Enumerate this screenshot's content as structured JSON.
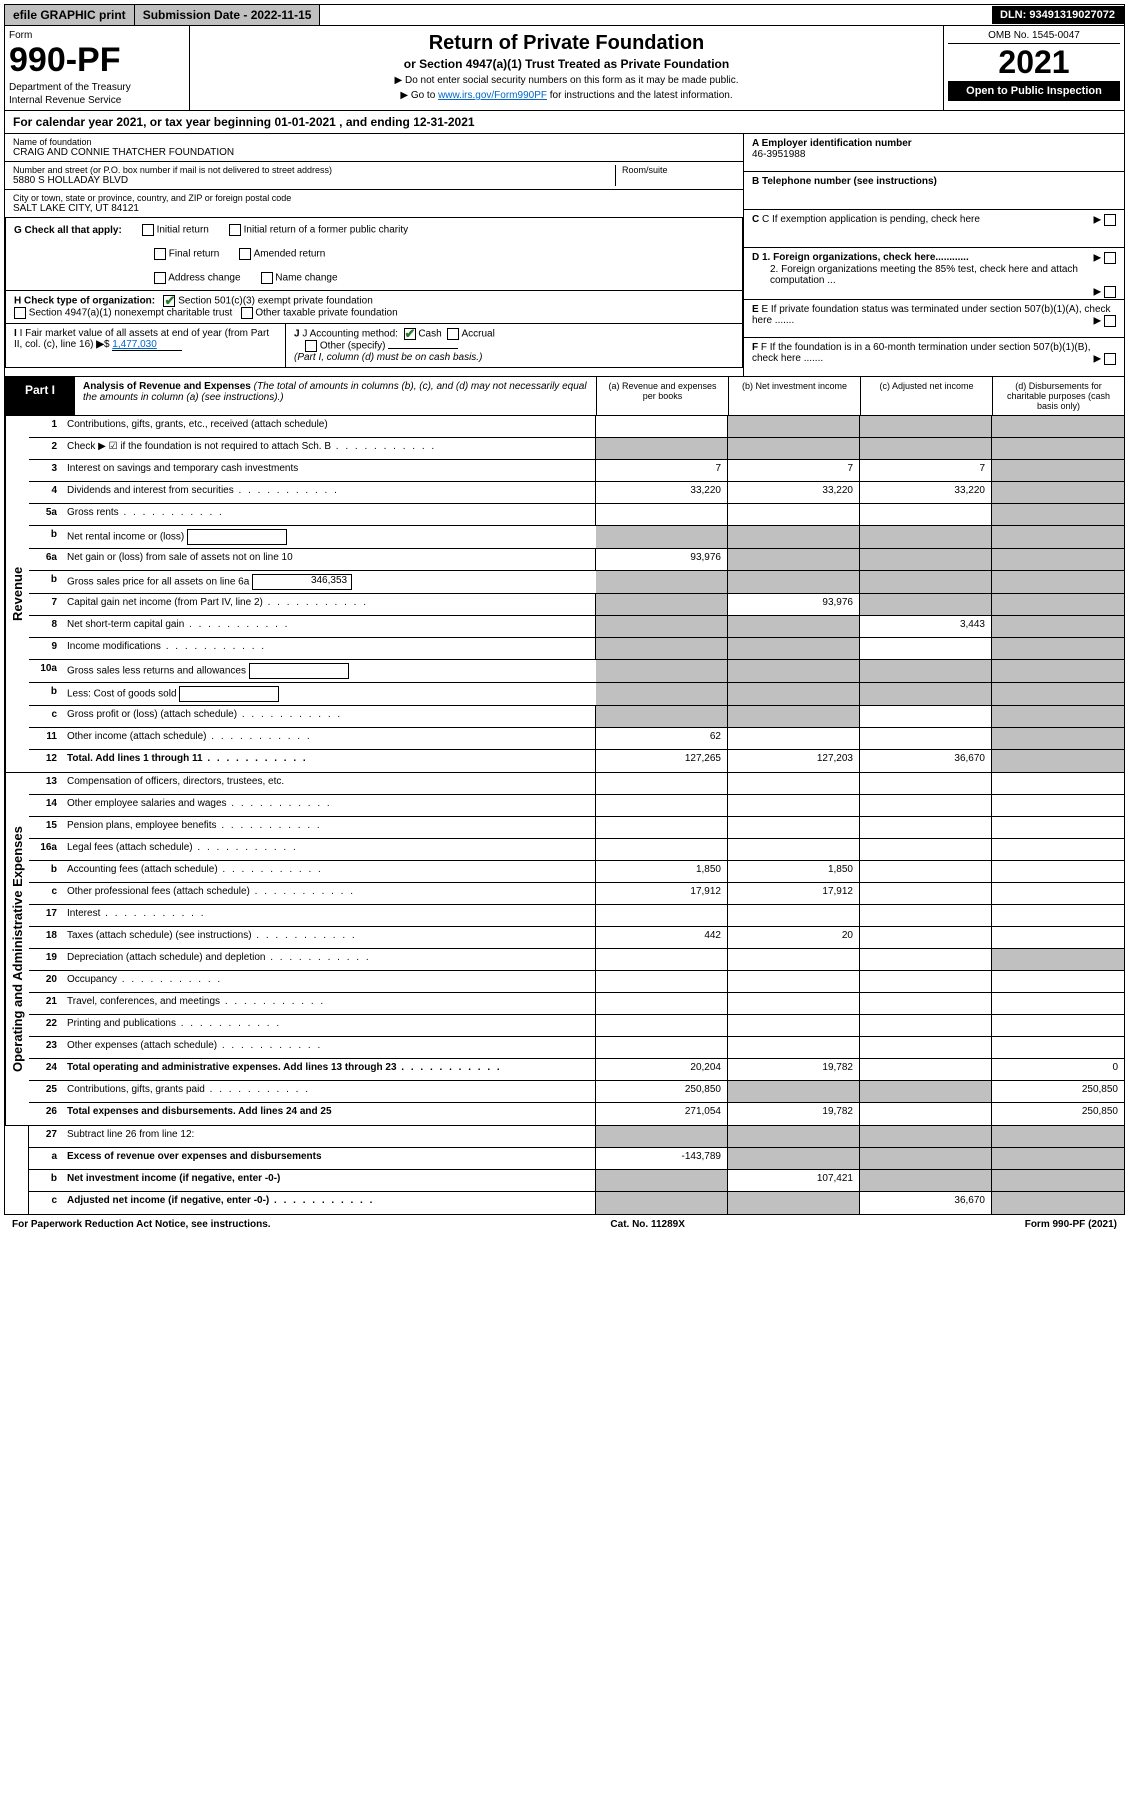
{
  "topbar": {
    "efile": "efile GRAPHIC print",
    "submission": "Submission Date - 2022-11-15",
    "dln": "DLN: 93491319027072"
  },
  "header": {
    "form_label": "Form",
    "form_num": "990-PF",
    "dept": "Department of the Treasury",
    "irs": "Internal Revenue Service",
    "title": "Return of Private Foundation",
    "subtitle": "or Section 4947(a)(1) Trust Treated as Private Foundation",
    "note1": "▶ Do not enter social security numbers on this form as it may be made public.",
    "note2_pre": "▶ Go to ",
    "note2_link": "www.irs.gov/Form990PF",
    "note2_post": " for instructions and the latest information.",
    "omb": "OMB No. 1545-0047",
    "year": "2021",
    "open": "Open to Public Inspection"
  },
  "cal_year": {
    "text_pre": "For calendar year 2021, or tax year beginning ",
    "begin": "01-01-2021",
    "text_mid": " , and ending ",
    "end": "12-31-2021"
  },
  "entity": {
    "name_label": "Name of foundation",
    "name": "CRAIG AND CONNIE THATCHER FOUNDATION",
    "addr_label": "Number and street (or P.O. box number if mail is not delivered to street address)",
    "addr": "5880 S HOLLADAY BLVD",
    "room_label": "Room/suite",
    "city_label": "City or town, state or province, country, and ZIP or foreign postal code",
    "city": "SALT LAKE CITY, UT  84121",
    "ein_label": "A Employer identification number",
    "ein": "46-3951988",
    "tel_label": "B Telephone number (see instructions)",
    "c_label": "C If exemption application is pending, check here",
    "d1": "D 1. Foreign organizations, check here............",
    "d2": "2. Foreign organizations meeting the 85% test, check here and attach computation ...",
    "e_label": "E If private foundation status was terminated under section 507(b)(1)(A), check here .......",
    "f_label": "F If the foundation is in a 60-month termination under section 507(b)(1)(B), check here ......."
  },
  "g": {
    "label": "G Check all that apply:",
    "opts": [
      "Initial return",
      "Final return",
      "Address change",
      "Initial return of a former public charity",
      "Amended return",
      "Name change"
    ]
  },
  "h": {
    "label": "H Check type of organization:",
    "opt1": "Section 501(c)(3) exempt private foundation",
    "opt2": "Section 4947(a)(1) nonexempt charitable trust",
    "opt3": "Other taxable private foundation"
  },
  "i": {
    "label": "I Fair market value of all assets at end of year (from Part II, col. (c), line 16)",
    "val": "1,477,030"
  },
  "j": {
    "label": "J Accounting method:",
    "cash": "Cash",
    "accrual": "Accrual",
    "other": "Other (specify)",
    "note": "(Part I, column (d) must be on cash basis.)"
  },
  "part1": {
    "label": "Part I",
    "title": "Analysis of Revenue and Expenses",
    "desc": "(The total of amounts in columns (b), (c), and (d) may not necessarily equal the amounts in column (a) (see instructions).)",
    "col_a": "(a) Revenue and expenses per books",
    "col_b": "(b) Net investment income",
    "col_c": "(c) Adjusted net income",
    "col_d": "(d) Disbursements for charitable purposes (cash basis only)"
  },
  "revenue_label": "Revenue",
  "expenses_label": "Operating and Administrative Expenses",
  "rows": [
    {
      "n": "1",
      "d": "Contributions, gifts, grants, etc., received (attach schedule)",
      "a": "",
      "b": "grey",
      "c": "grey",
      "dd": "grey"
    },
    {
      "n": "2",
      "d": "Check ▶ ☑ if the foundation is not required to attach Sch. B",
      "a": "grey",
      "b": "grey",
      "c": "grey",
      "dd": "grey",
      "dots": true
    },
    {
      "n": "3",
      "d": "Interest on savings and temporary cash investments",
      "a": "7",
      "b": "7",
      "c": "7",
      "dd": "grey"
    },
    {
      "n": "4",
      "d": "Dividends and interest from securities",
      "a": "33,220",
      "b": "33,220",
      "c": "33,220",
      "dd": "grey",
      "dots": true
    },
    {
      "n": "5a",
      "d": "Gross rents",
      "a": "",
      "b": "",
      "c": "",
      "dd": "grey",
      "dots": true
    },
    {
      "n": "b",
      "d": "Net rental income or (loss)",
      "a": "grey",
      "b": "grey",
      "c": "grey",
      "dd": "grey",
      "inline": true
    },
    {
      "n": "6a",
      "d": "Net gain or (loss) from sale of assets not on line 10",
      "a": "93,976",
      "b": "grey",
      "c": "grey",
      "dd": "grey"
    },
    {
      "n": "b",
      "d": "Gross sales price for all assets on line 6a",
      "a": "grey",
      "b": "grey",
      "c": "grey",
      "dd": "grey",
      "inline": true,
      "ival": "346,353"
    },
    {
      "n": "7",
      "d": "Capital gain net income (from Part IV, line 2)",
      "a": "grey",
      "b": "93,976",
      "c": "grey",
      "dd": "grey",
      "dots": true
    },
    {
      "n": "8",
      "d": "Net short-term capital gain",
      "a": "grey",
      "b": "grey",
      "c": "3,443",
      "dd": "grey",
      "dots": true
    },
    {
      "n": "9",
      "d": "Income modifications",
      "a": "grey",
      "b": "grey",
      "c": "",
      "dd": "grey",
      "dots": true
    },
    {
      "n": "10a",
      "d": "Gross sales less returns and allowances",
      "a": "grey",
      "b": "grey",
      "c": "grey",
      "dd": "grey",
      "inline": true
    },
    {
      "n": "b",
      "d": "Less: Cost of goods sold",
      "a": "grey",
      "b": "grey",
      "c": "grey",
      "dd": "grey",
      "inline": true,
      "dots": true
    },
    {
      "n": "c",
      "d": "Gross profit or (loss) (attach schedule)",
      "a": "grey",
      "b": "grey",
      "c": "",
      "dd": "grey",
      "dots": true
    },
    {
      "n": "11",
      "d": "Other income (attach schedule)",
      "a": "62",
      "b": "",
      "c": "",
      "dd": "grey",
      "dots": true
    },
    {
      "n": "12",
      "d": "Total. Add lines 1 through 11",
      "a": "127,265",
      "b": "127,203",
      "c": "36,670",
      "dd": "grey",
      "bold": true,
      "dots": true
    }
  ],
  "exp_rows": [
    {
      "n": "13",
      "d": "Compensation of officers, directors, trustees, etc.",
      "a": "",
      "b": "",
      "c": "",
      "dd": ""
    },
    {
      "n": "14",
      "d": "Other employee salaries and wages",
      "a": "",
      "b": "",
      "c": "",
      "dd": "",
      "dots": true
    },
    {
      "n": "15",
      "d": "Pension plans, employee benefits",
      "a": "",
      "b": "",
      "c": "",
      "dd": "",
      "dots": true
    },
    {
      "n": "16a",
      "d": "Legal fees (attach schedule)",
      "a": "",
      "b": "",
      "c": "",
      "dd": "",
      "dots": true
    },
    {
      "n": "b",
      "d": "Accounting fees (attach schedule)",
      "a": "1,850",
      "b": "1,850",
      "c": "",
      "dd": "",
      "dots": true
    },
    {
      "n": "c",
      "d": "Other professional fees (attach schedule)",
      "a": "17,912",
      "b": "17,912",
      "c": "",
      "dd": "",
      "dots": true
    },
    {
      "n": "17",
      "d": "Interest",
      "a": "",
      "b": "",
      "c": "",
      "dd": "",
      "dots": true
    },
    {
      "n": "18",
      "d": "Taxes (attach schedule) (see instructions)",
      "a": "442",
      "b": "20",
      "c": "",
      "dd": "",
      "dots": true
    },
    {
      "n": "19",
      "d": "Depreciation (attach schedule) and depletion",
      "a": "",
      "b": "",
      "c": "",
      "dd": "grey",
      "dots": true
    },
    {
      "n": "20",
      "d": "Occupancy",
      "a": "",
      "b": "",
      "c": "",
      "dd": "",
      "dots": true
    },
    {
      "n": "21",
      "d": "Travel, conferences, and meetings",
      "a": "",
      "b": "",
      "c": "",
      "dd": "",
      "dots": true
    },
    {
      "n": "22",
      "d": "Printing and publications",
      "a": "",
      "b": "",
      "c": "",
      "dd": "",
      "dots": true
    },
    {
      "n": "23",
      "d": "Other expenses (attach schedule)",
      "a": "",
      "b": "",
      "c": "",
      "dd": "",
      "dots": true
    },
    {
      "n": "24",
      "d": "Total operating and administrative expenses. Add lines 13 through 23",
      "a": "20,204",
      "b": "19,782",
      "c": "",
      "dd": "0",
      "bold": true,
      "dots": true
    },
    {
      "n": "25",
      "d": "Contributions, gifts, grants paid",
      "a": "250,850",
      "b": "grey",
      "c": "grey",
      "dd": "250,850",
      "dots": true
    },
    {
      "n": "26",
      "d": "Total expenses and disbursements. Add lines 24 and 25",
      "a": "271,054",
      "b": "19,782",
      "c": "",
      "dd": "250,850",
      "bold": true
    }
  ],
  "final_rows": [
    {
      "n": "27",
      "d": "Subtract line 26 from line 12:",
      "a": "grey",
      "b": "grey",
      "c": "grey",
      "dd": "grey"
    },
    {
      "n": "a",
      "d": "Excess of revenue over expenses and disbursements",
      "a": "-143,789",
      "b": "grey",
      "c": "grey",
      "dd": "grey",
      "bold": true
    },
    {
      "n": "b",
      "d": "Net investment income (if negative, enter -0-)",
      "a": "grey",
      "b": "107,421",
      "c": "grey",
      "dd": "grey",
      "bold": true
    },
    {
      "n": "c",
      "d": "Adjusted net income (if negative, enter -0-)",
      "a": "grey",
      "b": "grey",
      "c": "36,670",
      "dd": "grey",
      "bold": true,
      "dots": true
    }
  ],
  "footer": {
    "left": "For Paperwork Reduction Act Notice, see instructions.",
    "mid": "Cat. No. 11289X",
    "right": "Form 990-PF (2021)"
  }
}
